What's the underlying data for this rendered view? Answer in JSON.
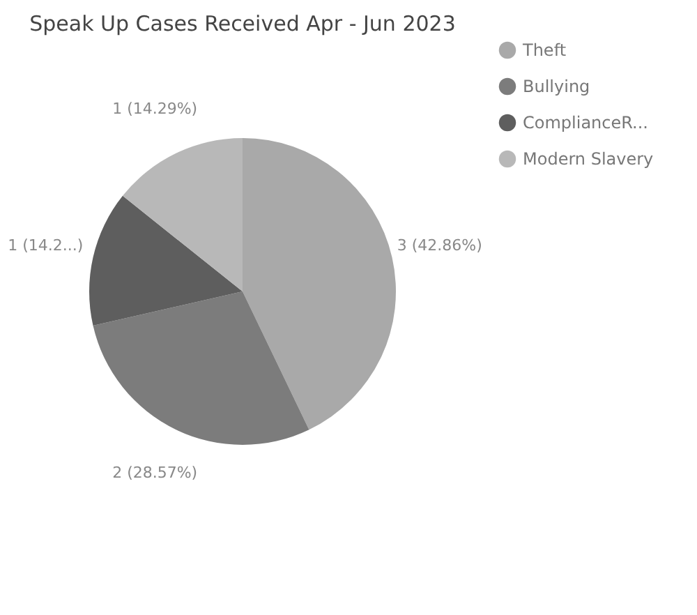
{
  "chart_data": {
    "type": "pie",
    "title": "Speak Up Cases Received Apr - Jun 2023",
    "categories": [
      "Theft",
      "Bullying",
      "ComplianceR...",
      "Modern Slavery"
    ],
    "values": [
      3,
      2,
      1,
      1
    ],
    "colors": [
      "#a9a9a9",
      "#7c7c7c",
      "#5e5e5e",
      "#b8b8b8"
    ],
    "value_labels": [
      "3 (42.86%)",
      "2 (28.57%)",
      "1 (14.2...)",
      "1 (14.29%)"
    ],
    "legend": "right"
  }
}
